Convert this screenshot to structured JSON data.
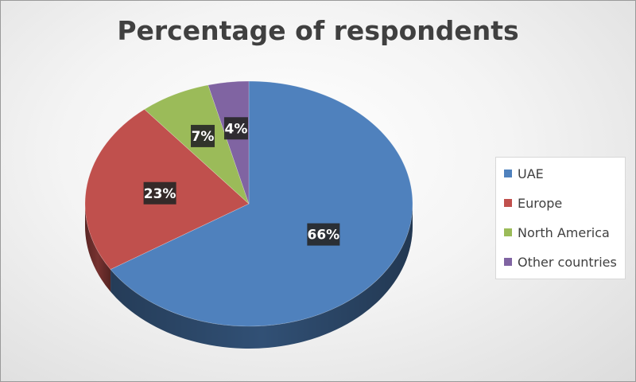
{
  "chart_data": {
    "type": "pie",
    "title": "Percentage of respondents",
    "categories": [
      "UAE",
      "Europe",
      "North America",
      "Other countries"
    ],
    "values": [
      66,
      23,
      7,
      4
    ],
    "data_labels": [
      "66%",
      "23%",
      "7%",
      "4%"
    ],
    "colors": [
      "#4f81bd",
      "#c0504d",
      "#9bbb59",
      "#8064a2"
    ],
    "legend_position": "right",
    "style": "3d"
  }
}
